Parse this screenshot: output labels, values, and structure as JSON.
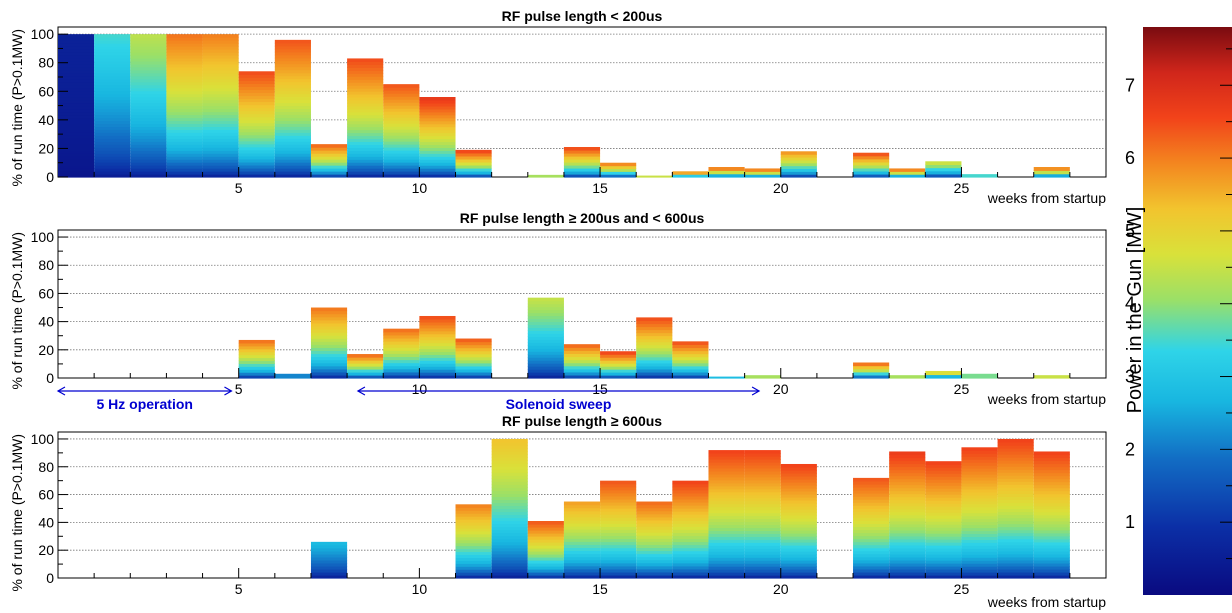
{
  "chart_data": [
    {
      "type": "bar",
      "title": "RF pulse length < 200us",
      "xlabel": "weeks from startup",
      "ylabel": "% of run time (P>0.1MW)",
      "xlim": [
        0,
        29
      ],
      "ylim": [
        0,
        105
      ],
      "x_ticks": [
        "5",
        "10",
        "15",
        "20",
        "25"
      ],
      "y_ticks": [
        "0",
        "20",
        "40",
        "60",
        "80",
        "100"
      ],
      "grid": "horizontal",
      "weeks": [
        1,
        2,
        3,
        4,
        5,
        6,
        7,
        8,
        9,
        10,
        11,
        12,
        13,
        14,
        15,
        16,
        17,
        18,
        19,
        20,
        21,
        22,
        23,
        24,
        25,
        26,
        27,
        28,
        29
      ],
      "values": [
        100,
        100,
        100,
        100,
        100,
        74,
        96,
        23,
        83,
        65,
        56,
        19,
        0,
        1.5,
        21,
        10,
        1,
        4,
        7,
        6,
        18,
        0,
        17,
        6,
        11,
        2,
        0,
        7,
        0
      ],
      "power_MW": [
        0.6,
        3.5,
        4.4,
        6.1,
        6.0,
        6.5,
        6.4,
        6.3,
        6.5,
        6.4,
        6.8,
        6.7,
        0,
        6.0,
        6.6,
        6.2,
        6.5,
        6.5,
        6.5,
        6.5,
        5.9,
        0,
        6.6,
        6.5,
        4.8,
        5.0,
        0,
        6.4,
        0
      ]
    },
    {
      "type": "bar",
      "title": "RF pulse length ≥ 200us and < 600us",
      "xlabel": "weeks from startup",
      "ylabel": "% of run time (P>0.1MW)",
      "xlim": [
        0,
        29
      ],
      "ylim": [
        0,
        105
      ],
      "x_ticks": [
        "5",
        "10",
        "15",
        "20",
        "25"
      ],
      "y_ticks": [
        "0",
        "20",
        "40",
        "60",
        "80",
        "100"
      ],
      "grid": "horizontal",
      "weeks": [
        1,
        2,
        3,
        4,
        5,
        6,
        7,
        8,
        9,
        10,
        11,
        12,
        13,
        14,
        15,
        16,
        17,
        18,
        19,
        20,
        21,
        22,
        23,
        24,
        25,
        26,
        27,
        28,
        29
      ],
      "values": [
        0,
        0,
        0,
        0,
        0,
        27,
        3,
        50,
        17,
        35,
        44,
        28,
        0,
        57,
        24,
        19,
        43,
        26,
        1,
        2,
        0,
        0,
        11,
        2,
        5,
        3,
        0,
        2,
        0
      ],
      "power_MW": [
        0,
        0,
        0,
        0,
        0,
        6.2,
        3.0,
        6.1,
        6.3,
        6.2,
        6.5,
        6.4,
        0,
        4.5,
        6.3,
        6.7,
        6.5,
        6.5,
        4.0,
        6.0,
        0,
        0,
        6.4,
        6.0,
        5.5,
        5.5,
        0,
        6.5,
        0
      ]
    },
    {
      "type": "bar",
      "title": "RF pulse length ≥ 600us",
      "xlabel": "weeks from startup",
      "ylabel": "% of run time (P>0.1MW)",
      "xlim": [
        0,
        29
      ],
      "ylim": [
        0,
        105
      ],
      "x_ticks": [
        "5",
        "10",
        "15",
        "20",
        "25"
      ],
      "y_ticks": [
        "0",
        "20",
        "40",
        "60",
        "80",
        "100"
      ],
      "grid": "horizontal",
      "weeks": [
        1,
        2,
        3,
        4,
        5,
        6,
        7,
        8,
        9,
        10,
        11,
        12,
        13,
        14,
        15,
        16,
        17,
        18,
        19,
        20,
        21,
        22,
        23,
        24,
        25,
        26,
        27,
        28,
        29
      ],
      "values": [
        0,
        0,
        0,
        0,
        0,
        0,
        0,
        26,
        0,
        0,
        0,
        53,
        100,
        41,
        55,
        70,
        55,
        70,
        92,
        92,
        82,
        0,
        72,
        91,
        84,
        94,
        100,
        91,
        0
      ],
      "power_MW": [
        0,
        0,
        0,
        0,
        0,
        0,
        0,
        2.8,
        0,
        0,
        0,
        6.0,
        5.3,
        6.4,
        5.7,
        6.4,
        6.2,
        6.6,
        6.6,
        6.6,
        6.6,
        0,
        6.4,
        6.7,
        6.6,
        6.6,
        6.6,
        6.6,
        0
      ]
    }
  ],
  "colorbar": {
    "title": "Power in the Gun [MW]",
    "range": [
      0,
      7.8
    ],
    "ticks": [
      "1",
      "2",
      "3",
      "4",
      "5",
      "6",
      "7"
    ]
  },
  "annotations": {
    "five_hz": {
      "label": "5 Hz operation",
      "from_week": 0,
      "to_week": 4.8
    },
    "solenoid": {
      "label": "Solenoid sweep",
      "from_week": 8.3,
      "to_week": 19.4
    }
  }
}
